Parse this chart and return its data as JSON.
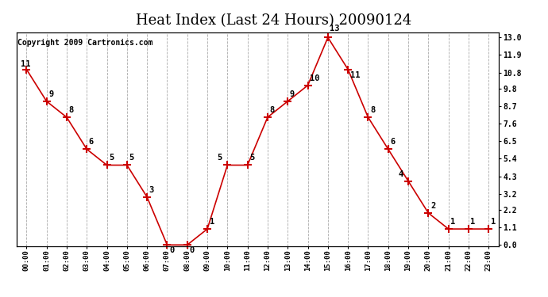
{
  "title": "Heat Index (Last 24 Hours) 20090124",
  "copyright": "Copyright 2009 Cartronics.com",
  "hours": [
    0,
    1,
    2,
    3,
    4,
    5,
    6,
    7,
    8,
    9,
    10,
    11,
    12,
    13,
    14,
    15,
    16,
    17,
    18,
    19,
    20,
    21,
    22,
    23
  ],
  "x_labels": [
    "00:00",
    "01:00",
    "02:00",
    "03:00",
    "04:00",
    "05:00",
    "06:00",
    "07:00",
    "08:00",
    "09:00",
    "10:00",
    "11:00",
    "12:00",
    "13:00",
    "14:00",
    "15:00",
    "16:00",
    "17:00",
    "18:00",
    "19:00",
    "20:00",
    "21:00",
    "22:00",
    "23:00"
  ],
  "values": [
    11,
    9,
    8,
    6,
    5,
    5,
    3,
    0,
    0,
    1,
    5,
    5,
    8,
    9,
    10,
    13,
    11,
    8,
    6,
    4,
    2,
    1,
    1,
    1
  ],
  "point_labels": [
    "11",
    "9",
    "8",
    "6",
    "5",
    "5",
    "3",
    "0",
    "0",
    "1",
    "5",
    "5",
    "8",
    "9",
    "10",
    "13",
    "11",
    "8",
    "6",
    "4",
    "2",
    "1",
    "1",
    "1"
  ],
  "ylim": [
    -0.1,
    13.3
  ],
  "ytick_positions": [
    0.0,
    1.1,
    2.2,
    3.2,
    4.3,
    5.4,
    6.5,
    7.6,
    8.7,
    9.8,
    10.8,
    11.9,
    13.0
  ],
  "ytick_labels": [
    "0.0",
    "1.1",
    "2.2",
    "3.2",
    "4.3",
    "5.4",
    "6.5",
    "7.6",
    "8.7",
    "9.8",
    "10.8",
    "11.9",
    "13.0"
  ],
  "line_color": "#cc0000",
  "marker_color": "#cc0000",
  "background_color": "#ffffff",
  "grid_color": "#aaaaaa",
  "title_fontsize": 13,
  "point_label_fontsize": 7.5,
  "copyright_fontsize": 7
}
